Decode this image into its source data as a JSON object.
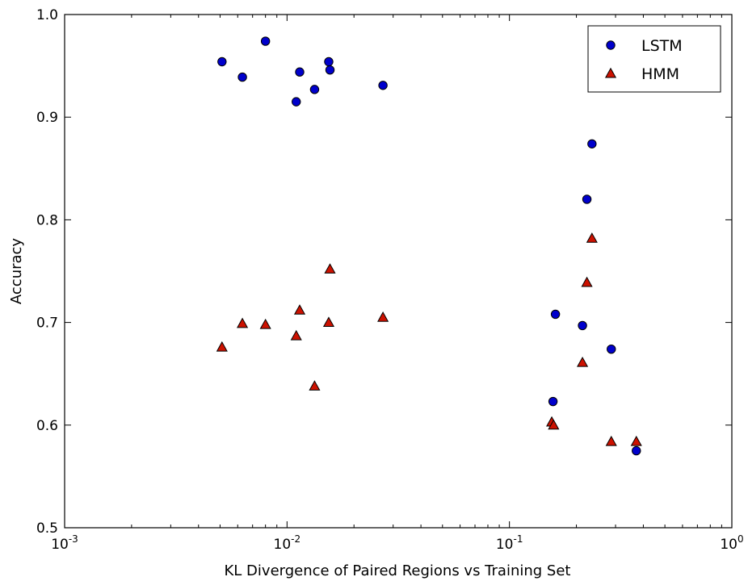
{
  "chart_data": {
    "type": "scatter",
    "xlabel": "KL Divergence of Paired Regions vs Training Set",
    "ylabel": "Accuracy",
    "xscale": "log",
    "xlim": [
      0.001,
      1.0
    ],
    "ylim": [
      0.5,
      1.0
    ],
    "x_ticks": [
      {
        "base": "10",
        "exp": "-3",
        "value": 0.001
      },
      {
        "base": "10",
        "exp": "-2",
        "value": 0.01
      },
      {
        "base": "10",
        "exp": "-1",
        "value": 0.1
      },
      {
        "base": "10",
        "exp": "0",
        "value": 1.0
      }
    ],
    "y_ticks": [
      "0.5",
      "0.6",
      "0.7",
      "0.8",
      "0.9",
      "1.0"
    ],
    "legend_position": "top-right",
    "grid": false,
    "series": [
      {
        "name": "LSTM",
        "marker": "circle",
        "color": "#0000cc",
        "points": [
          {
            "x": 0.0051,
            "y": 0.954
          },
          {
            "x": 0.0063,
            "y": 0.939
          },
          {
            "x": 0.008,
            "y": 0.974
          },
          {
            "x": 0.011,
            "y": 0.915
          },
          {
            "x": 0.0114,
            "y": 0.944
          },
          {
            "x": 0.0133,
            "y": 0.927
          },
          {
            "x": 0.0154,
            "y": 0.954
          },
          {
            "x": 0.0156,
            "y": 0.946
          },
          {
            "x": 0.027,
            "y": 0.931
          },
          {
            "x": 0.157,
            "y": 0.623
          },
          {
            "x": 0.161,
            "y": 0.708
          },
          {
            "x": 0.213,
            "y": 0.697
          },
          {
            "x": 0.223,
            "y": 0.82
          },
          {
            "x": 0.235,
            "y": 0.874
          },
          {
            "x": 0.287,
            "y": 0.674
          },
          {
            "x": 0.372,
            "y": 0.575
          }
        ]
      },
      {
        "name": "HMM",
        "marker": "triangle",
        "color": "#cc1100",
        "points": [
          {
            "x": 0.0051,
            "y": 0.676
          },
          {
            "x": 0.0063,
            "y": 0.699
          },
          {
            "x": 0.008,
            "y": 0.698
          },
          {
            "x": 0.011,
            "y": 0.687
          },
          {
            "x": 0.0114,
            "y": 0.712
          },
          {
            "x": 0.0133,
            "y": 0.638
          },
          {
            "x": 0.0154,
            "y": 0.7
          },
          {
            "x": 0.0156,
            "y": 0.752
          },
          {
            "x": 0.027,
            "y": 0.705
          },
          {
            "x": 0.155,
            "y": 0.603
          },
          {
            "x": 0.158,
            "y": 0.6
          },
          {
            "x": 0.213,
            "y": 0.661
          },
          {
            "x": 0.223,
            "y": 0.739
          },
          {
            "x": 0.235,
            "y": 0.782
          },
          {
            "x": 0.287,
            "y": 0.584
          },
          {
            "x": 0.372,
            "y": 0.584
          }
        ]
      }
    ]
  }
}
